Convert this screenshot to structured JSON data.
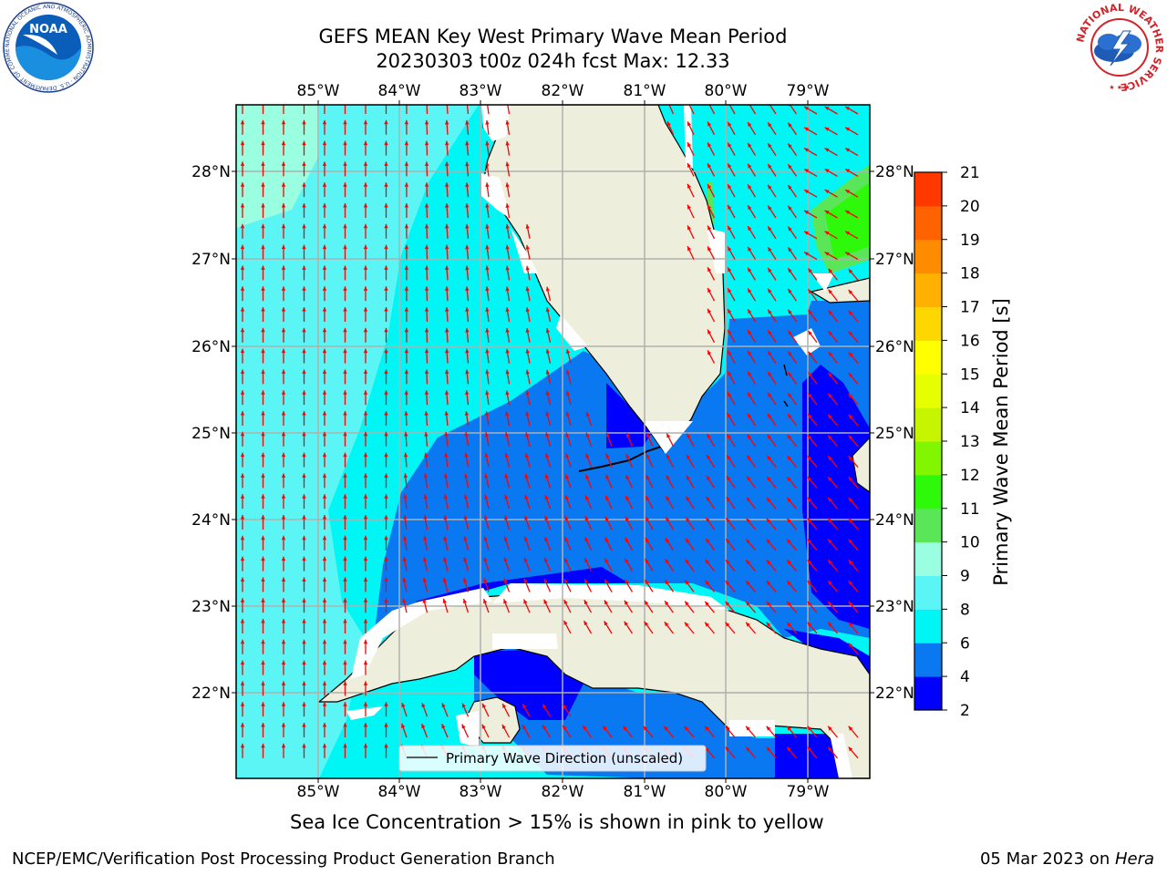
{
  "title": {
    "line1": "GEFS MEAN Key West Primary Wave Mean Period",
    "line2": "20230303 t00z 024h fcst   Max: 12.33"
  },
  "axes": {
    "lon_labels": [
      "85°W",
      "84°W",
      "83°W",
      "82°W",
      "81°W",
      "80°W",
      "79°W"
    ],
    "lat_labels": [
      "28°N",
      "27°N",
      "26°N",
      "25°N",
      "24°N",
      "23°N",
      "22°N"
    ]
  },
  "legend": {
    "label": "Primary Wave Direction (unscaled)"
  },
  "colorbar": {
    "label": "Primary Wave Mean Period [s]",
    "ticks": [
      "2",
      "4",
      "6",
      "8",
      "9",
      "10",
      "11",
      "12",
      "13",
      "14",
      "15",
      "16",
      "17",
      "18",
      "19",
      "20",
      "21"
    ],
    "colors": [
      "#0000ff",
      "#0a78f0",
      "#00f5f5",
      "#5cf5f5",
      "#99ffe0",
      "#5ae658",
      "#2ef90a",
      "#82f500",
      "#c7f500",
      "#e6ff00",
      "#ffff00",
      "#ffd700",
      "#ffb000",
      "#ff8c00",
      "#ff6200",
      "#ff3800",
      "#ff0000"
    ]
  },
  "caption": "Sea Ice Concentration > 15% is shown in pink to yellow",
  "footer": {
    "left": "NCEP/EMC/Verification Post Processing Product Generation Branch",
    "date": "05 Mar 2023 on ",
    "machine": "Hera"
  },
  "logos": {
    "noaa": "NOAA",
    "noaa_ring": "NATIONAL OCEANIC AND ATMOSPHERIC ADMINISTRATION · U.S. DEPARTMENT OF COMMERCE",
    "nws_ring": "NATIONAL WEATHER SERVICE"
  },
  "colors": {
    "land": "#eeeedd",
    "arrow": "#ff0000",
    "grid": "#b0b0b0"
  }
}
